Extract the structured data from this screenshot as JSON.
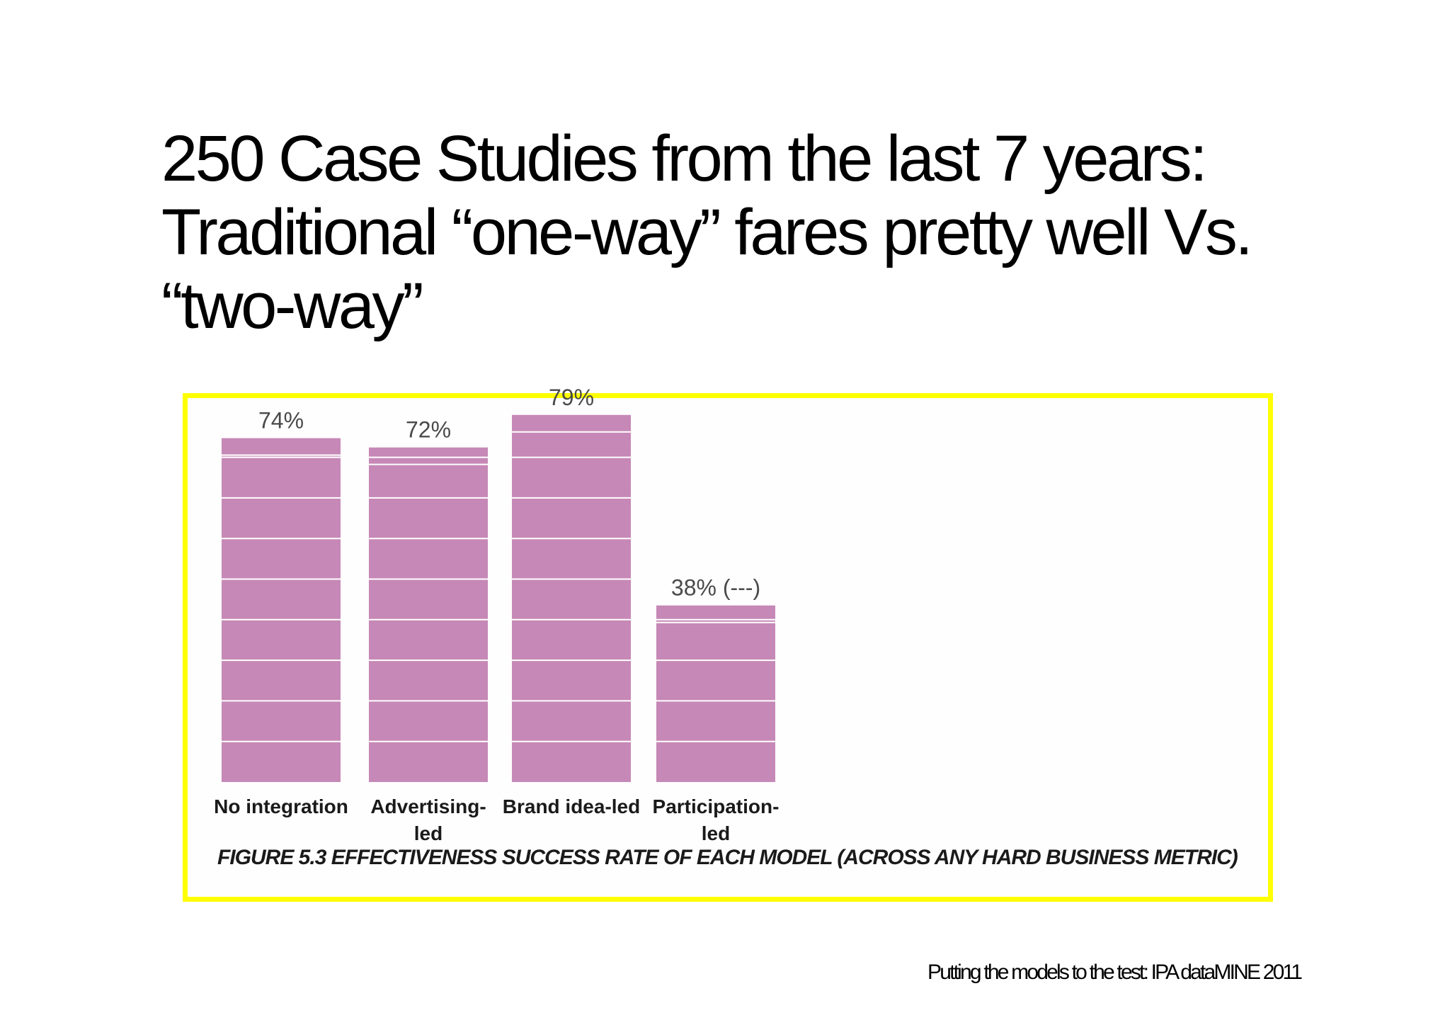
{
  "slide": {
    "title_lines": [
      "250 Case Studies from the last 7 years:",
      "Traditional “one-way” fares pretty well Vs.",
      "“two-way”"
    ],
    "source": "Putting the models to the test: IPA dataMINE 2011"
  },
  "colors": {
    "bar": "#c688b6",
    "gridline": "#ffffff",
    "frame": "#ffff00"
  },
  "chart_data": {
    "type": "bar",
    "caption": "FIGURE 5.3 EFFECTIVENESS SUCCESS RATE OF EACH MODEL (ACROSS ANY HARD BUSINESS METRIC)",
    "categories": [
      [
        "No integration"
      ],
      [
        "Advertising-",
        "led"
      ],
      [
        "Brand idea-led"
      ],
      [
        "Participation-",
        "led"
      ]
    ],
    "values": [
      74,
      72,
      79,
      38
    ],
    "value_labels": [
      "74%",
      "72%",
      "79%",
      "38% (---)"
    ],
    "unit": "%",
    "ylim": [
      0,
      80
    ],
    "grid": true
  }
}
